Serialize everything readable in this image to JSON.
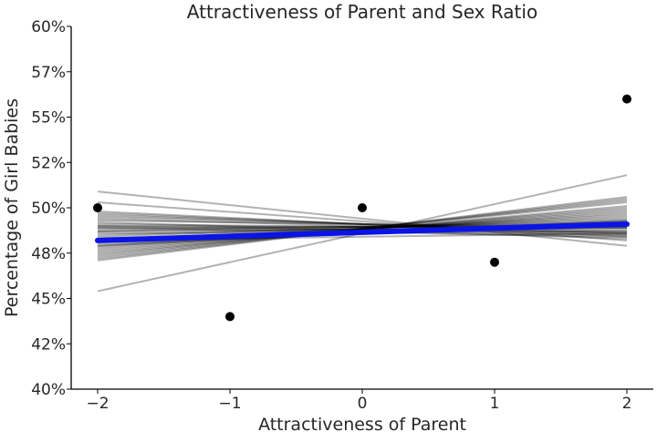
{
  "chart_data": {
    "type": "scatter",
    "title": "Attractiveness of Parent and Sex Ratio",
    "xlabel": "Attractiveness of Parent",
    "ylabel": "Percentage of Girl Babies",
    "xlim": [
      -2.2,
      2.2
    ],
    "ylim": [
      40,
      60
    ],
    "x_ticks": [
      -2,
      -1,
      0,
      1,
      2
    ],
    "x_tick_labels": [
      "−2",
      "−1",
      "0",
      "1",
      "2"
    ],
    "y_ticks": [
      40,
      42.5,
      45,
      47.5,
      50,
      52.5,
      55,
      57.5,
      60
    ],
    "y_tick_labels": [
      "40%",
      "42%",
      "45%",
      "48%",
      "50%",
      "52%",
      "55%",
      "57%",
      "60%"
    ],
    "grid": false,
    "points": {
      "x": [
        -2,
        -1,
        0,
        1,
        2
      ],
      "y": [
        50,
        44,
        50,
        47,
        56
      ],
      "color": "#000000"
    },
    "mean_line": {
      "x": [
        -2,
        2
      ],
      "y": [
        48.2,
        49.1
      ],
      "color": "#0a14e6"
    },
    "posterior_lines": {
      "color": "#000000",
      "endpoints": [
        [
          50.9,
          47.9
        ],
        [
          50.3,
          48.2
        ],
        [
          49.8,
          48.4
        ],
        [
          49.7,
          48.5
        ],
        [
          49.6,
          48.6
        ],
        [
          49.5,
          48.7
        ],
        [
          49.4,
          48.6
        ],
        [
          49.3,
          48.9
        ],
        [
          49.2,
          48.3
        ],
        [
          49.1,
          48.8
        ],
        [
          49.0,
          48.9
        ],
        [
          48.9,
          49.0
        ],
        [
          48.9,
          48.4
        ],
        [
          48.8,
          49.1
        ],
        [
          48.7,
          49.2
        ],
        [
          48.6,
          48.7
        ],
        [
          48.5,
          49.3
        ],
        [
          48.4,
          49.4
        ],
        [
          48.3,
          49.0
        ],
        [
          48.2,
          49.5
        ],
        [
          48.1,
          49.6
        ],
        [
          48.0,
          49.2
        ],
        [
          47.9,
          49.7
        ],
        [
          47.8,
          49.8
        ],
        [
          47.7,
          49.9
        ],
        [
          47.6,
          50.0
        ],
        [
          47.5,
          50.1
        ],
        [
          47.4,
          50.3
        ],
        [
          47.3,
          50.4
        ],
        [
          47.2,
          50.5
        ],
        [
          47.1,
          50.6
        ],
        [
          48.7,
          48.9
        ],
        [
          48.2,
          48.6
        ],
        [
          47.9,
          49.3
        ],
        [
          49.0,
          48.5
        ],
        [
          45.4,
          51.8
        ]
      ]
    }
  }
}
